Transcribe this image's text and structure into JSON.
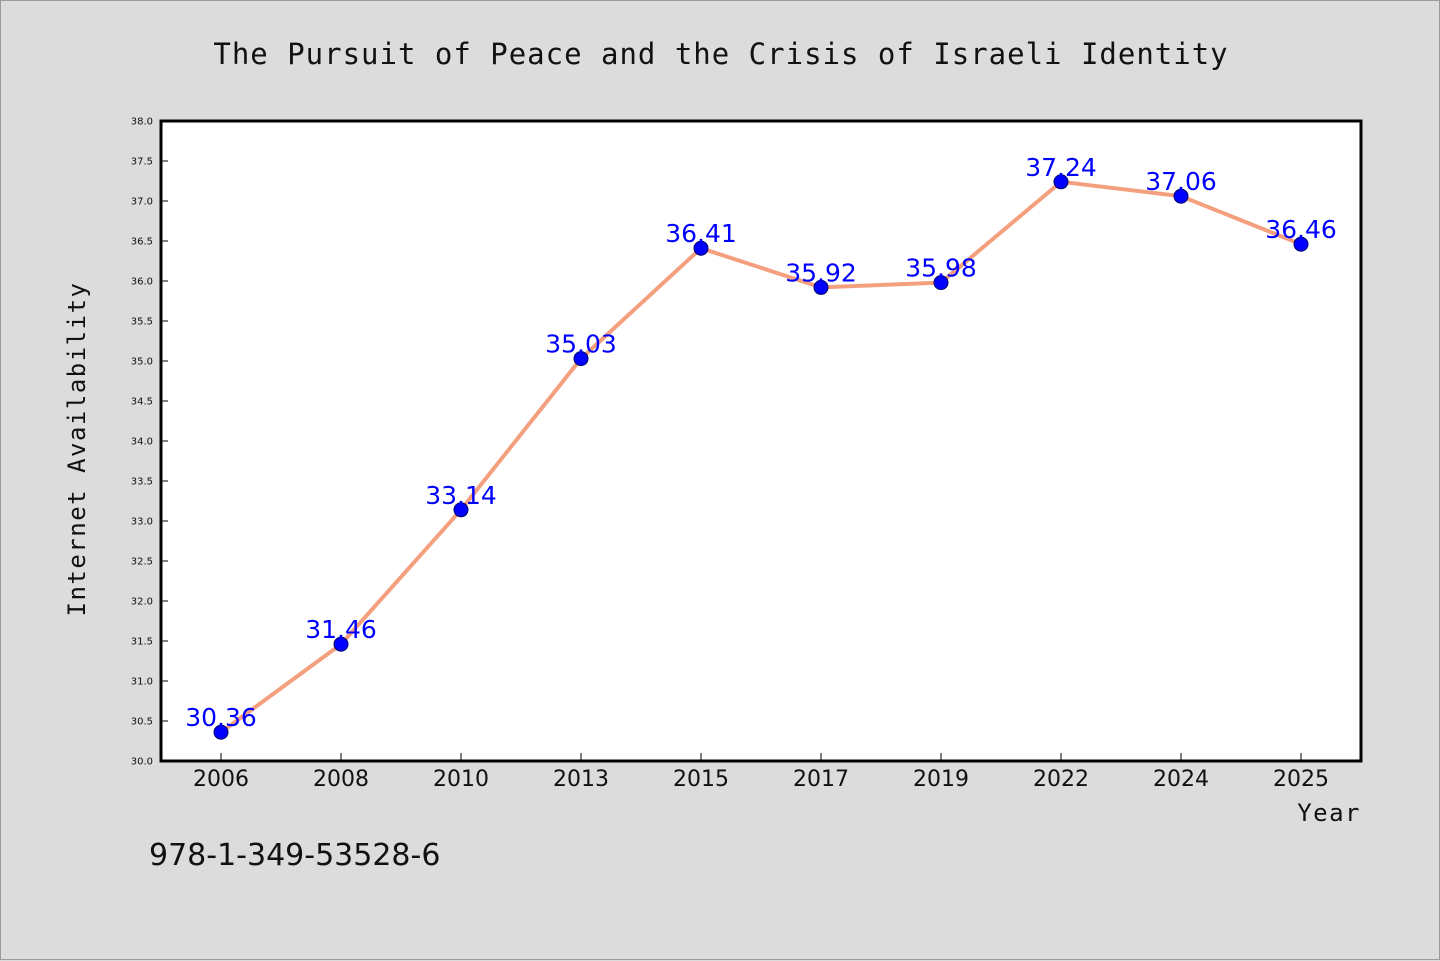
{
  "chart_data": {
    "type": "line",
    "title": "The Pursuit of Peace and the Crisis of Israeli Identity",
    "xlabel": "Year",
    "ylabel": "Internet Availability",
    "categories": [
      "2006",
      "2008",
      "2010",
      "2013",
      "2015",
      "2017",
      "2019",
      "2022",
      "2024",
      "2025"
    ],
    "series": [
      {
        "values": [
          30.36,
          31.46,
          33.14,
          35.03,
          36.41,
          35.92,
          35.98,
          37.24,
          37.06,
          36.46
        ],
        "data_labels": [
          "30.36",
          "31.46",
          "33.14",
          "35.03",
          "36.41",
          "35.92",
          "35.98",
          "37.24",
          "37.06",
          "36.46"
        ],
        "line_color": "#f4a07e",
        "marker_color": "#0000ff"
      }
    ],
    "ylim": [
      30.0,
      38.0
    ],
    "yticks": [
      "30.0",
      "30.5",
      "31.0",
      "31.5",
      "32.0",
      "32.5",
      "33.0",
      "33.5",
      "34.0",
      "34.5",
      "35.0",
      "35.5",
      "36.0",
      "36.5",
      "37.0",
      "37.5",
      "38.0"
    ],
    "grid": false,
    "legend": "none"
  },
  "footer": {
    "isbn": "978-1-349-53528-6"
  },
  "colors": {
    "background": "#dcdcdc",
    "plot_background": "#ffffff",
    "line": "#f4a07e",
    "marker": "#0000ff",
    "data_label": "#0000ff"
  }
}
